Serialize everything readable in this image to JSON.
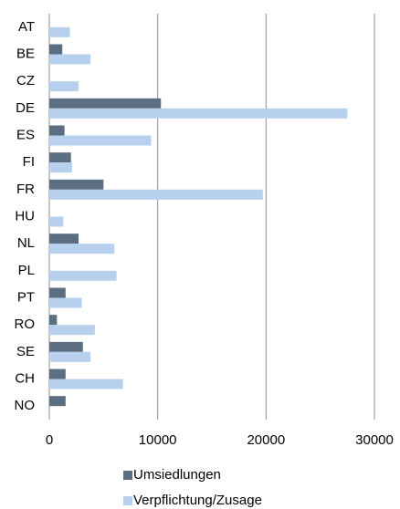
{
  "chart_data": {
    "type": "bar",
    "orientation": "horizontal",
    "categories": [
      "AT",
      "BE",
      "CZ",
      "DE",
      "ES",
      "FI",
      "FR",
      "HU",
      "NL",
      "PL",
      "PT",
      "RO",
      "SE",
      "CH",
      "NO"
    ],
    "series": [
      {
        "name": "Umsiedlungen",
        "color": "#5b6e82",
        "values": [
          0,
          1200,
          0,
          10300,
          1400,
          2000,
          5000,
          0,
          2700,
          0,
          1500,
          700,
          3100,
          1500,
          1500
        ]
      },
      {
        "name": "Verpflichtung/Zusage",
        "color": "#b7d0ee",
        "values": [
          1900,
          3800,
          2700,
          27500,
          9400,
          2100,
          19700,
          1300,
          6000,
          6200,
          3000,
          4200,
          3800,
          6800,
          0
        ]
      }
    ],
    "xlim": [
      0,
      30000
    ],
    "xticks": [
      0,
      10000,
      20000,
      30000
    ],
    "grid": true,
    "legend": "bottom"
  }
}
